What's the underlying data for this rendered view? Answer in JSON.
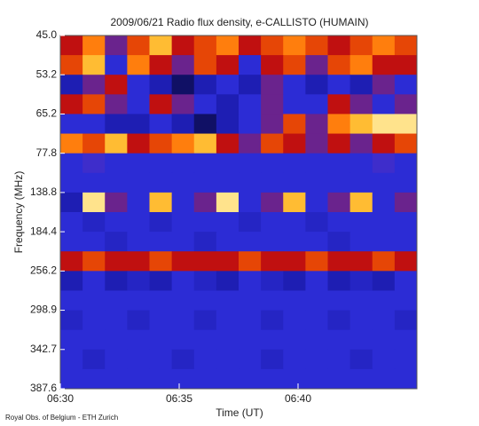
{
  "chart_data": {
    "type": "heatmap",
    "title": "2009/06/21  Radio flux density, e-CALLISTO (HUMAIN)",
    "x_label": "Time (UT)",
    "y_label": "Frequency (MHz)",
    "footer": "Royal Obs. of Belgium - ETH Zurich",
    "y_labels": [
      "45.0",
      "53.2",
      "65.2",
      "77.8",
      "138.8",
      "184.4",
      "256.2",
      "298.9",
      "342.7",
      "387.6"
    ],
    "xlim": [
      390,
      405
    ],
    "xticks": [
      {
        "value": 390,
        "label": "06:30"
      },
      {
        "value": 395,
        "label": "06:35"
      },
      {
        "value": 400,
        "label": "06:40"
      }
    ],
    "colorscale": [
      "#000000",
      "#1a1aa8",
      "#3030e0",
      "#c01010",
      "#ff6a00",
      "#ffd040",
      "#ffffff"
    ],
    "z": [
      [
        0.5,
        0.7,
        0.4,
        0.6,
        0.8,
        0.5,
        0.6,
        0.7,
        0.5,
        0.6,
        0.7,
        0.6,
        0.5,
        0.6,
        0.7,
        0.6
      ],
      [
        0.6,
        0.8,
        0.3,
        0.7,
        0.5,
        0.4,
        0.6,
        0.5,
        0.3,
        0.5,
        0.6,
        0.4,
        0.6,
        0.7,
        0.5,
        0.5
      ],
      [
        0.2,
        0.4,
        0.5,
        0.3,
        0.2,
        0.1,
        0.2,
        0.3,
        0.2,
        0.4,
        0.3,
        0.2,
        0.3,
        0.2,
        0.4,
        0.3
      ],
      [
        0.5,
        0.6,
        0.4,
        0.3,
        0.5,
        0.4,
        0.3,
        0.2,
        0.3,
        0.4,
        0.3,
        0.3,
        0.5,
        0.4,
        0.3,
        0.4
      ],
      [
        0.3,
        0.3,
        0.2,
        0.2,
        0.3,
        0.2,
        0.1,
        0.2,
        0.3,
        0.4,
        0.6,
        0.4,
        0.7,
        0.8,
        0.9,
        0.9
      ],
      [
        0.7,
        0.6,
        0.8,
        0.5,
        0.6,
        0.7,
        0.8,
        0.5,
        0.4,
        0.6,
        0.5,
        0.4,
        0.5,
        0.4,
        0.5,
        0.6
      ],
      [
        0.3,
        0.35,
        0.3,
        0.3,
        0.3,
        0.3,
        0.3,
        0.3,
        0.3,
        0.3,
        0.3,
        0.3,
        0.3,
        0.3,
        0.35,
        0.3
      ],
      [
        0.3,
        0.3,
        0.3,
        0.3,
        0.3,
        0.3,
        0.3,
        0.3,
        0.3,
        0.3,
        0.3,
        0.3,
        0.3,
        0.3,
        0.3,
        0.3
      ],
      [
        0.2,
        0.9,
        0.4,
        0.3,
        0.8,
        0.3,
        0.4,
        0.9,
        0.3,
        0.4,
        0.8,
        0.3,
        0.4,
        0.8,
        0.3,
        0.4
      ],
      [
        0.3,
        0.25,
        0.3,
        0.3,
        0.25,
        0.3,
        0.3,
        0.3,
        0.25,
        0.3,
        0.3,
        0.25,
        0.3,
        0.3,
        0.3,
        0.3
      ],
      [
        0.3,
        0.3,
        0.25,
        0.3,
        0.3,
        0.3,
        0.25,
        0.3,
        0.3,
        0.3,
        0.3,
        0.3,
        0.25,
        0.3,
        0.3,
        0.3
      ],
      [
        0.5,
        0.6,
        0.5,
        0.5,
        0.6,
        0.5,
        0.5,
        0.5,
        0.6,
        0.5,
        0.5,
        0.6,
        0.5,
        0.5,
        0.6,
        0.5
      ],
      [
        0.2,
        0.3,
        0.2,
        0.25,
        0.2,
        0.3,
        0.25,
        0.2,
        0.3,
        0.25,
        0.2,
        0.3,
        0.2,
        0.25,
        0.2,
        0.3
      ],
      [
        0.3,
        0.3,
        0.3,
        0.3,
        0.3,
        0.3,
        0.3,
        0.3,
        0.3,
        0.3,
        0.3,
        0.3,
        0.3,
        0.3,
        0.3,
        0.3
      ],
      [
        0.25,
        0.3,
        0.3,
        0.25,
        0.3,
        0.3,
        0.25,
        0.3,
        0.3,
        0.25,
        0.3,
        0.3,
        0.25,
        0.3,
        0.3,
        0.25
      ],
      [
        0.3,
        0.3,
        0.3,
        0.3,
        0.3,
        0.3,
        0.3,
        0.3,
        0.3,
        0.3,
        0.3,
        0.3,
        0.3,
        0.3,
        0.3,
        0.3
      ],
      [
        0.3,
        0.25,
        0.3,
        0.3,
        0.3,
        0.25,
        0.3,
        0.3,
        0.3,
        0.25,
        0.3,
        0.3,
        0.3,
        0.25,
        0.3,
        0.3
      ],
      [
        0.3,
        0.3,
        0.3,
        0.3,
        0.3,
        0.3,
        0.3,
        0.3,
        0.3,
        0.3,
        0.3,
        0.3,
        0.3,
        0.3,
        0.3,
        0.3
      ]
    ]
  }
}
